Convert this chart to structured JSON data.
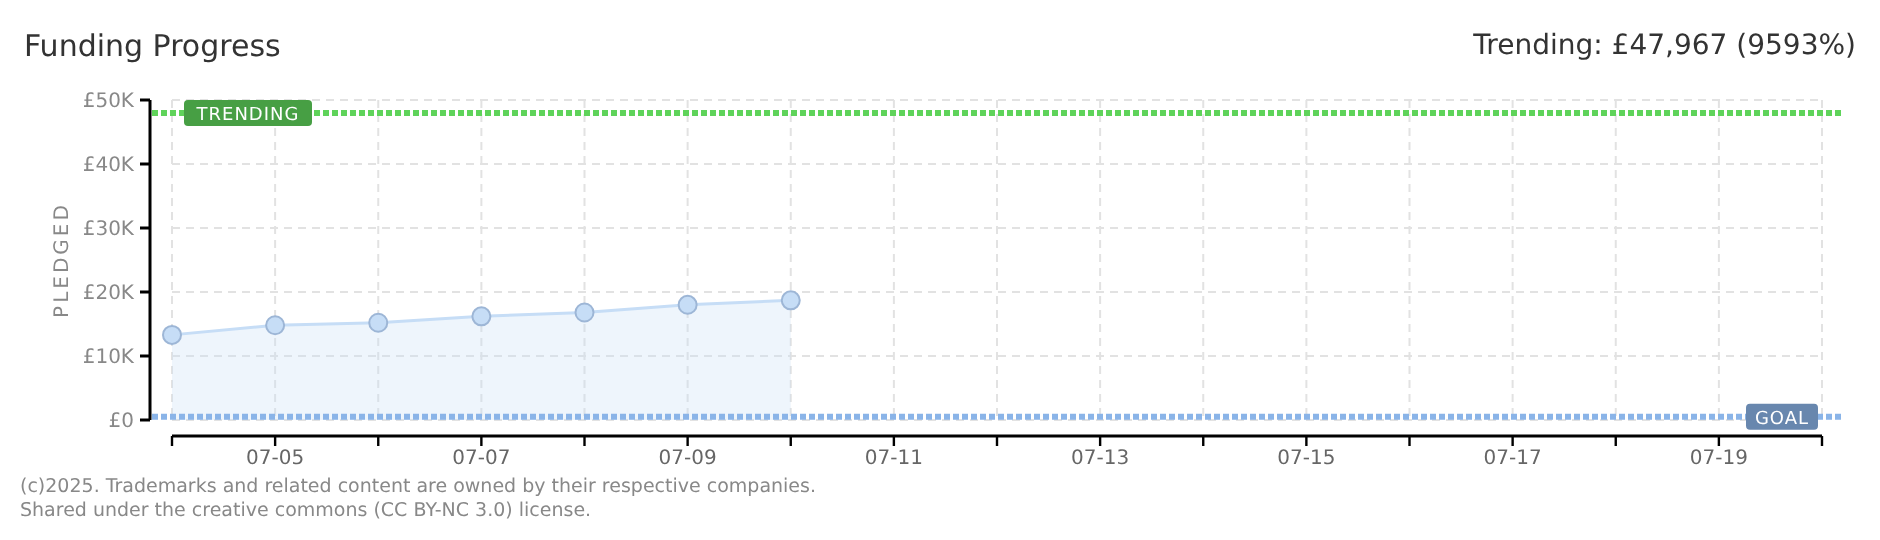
{
  "chart_data": {
    "type": "area",
    "title": "Funding Progress",
    "subtitle": "Trending: £47,967 (9593%)",
    "ylabel": "PLEDGED",
    "x": [
      "--07-04",
      "--07-05",
      "--07-06",
      "--07-07",
      "--07-08",
      "--07-09",
      "--07-10"
    ],
    "series": [
      {
        "color": "#c6ddf6",
        "values": [
          13300,
          14800,
          15200,
          16200,
          16800,
          18000,
          18700
        ]
      }
    ],
    "xlim": [
      "--07-04",
      "--07-20"
    ],
    "xticks": [
      {
        "value": "--07-04",
        "label": null
      },
      {
        "value": "--07-05",
        "label": "07-05"
      },
      {
        "value": "--07-06",
        "label": null
      },
      {
        "value": "--07-07",
        "label": "07-07"
      },
      {
        "value": "--07-08",
        "label": null
      },
      {
        "value": "--07-09",
        "label": "07-09"
      },
      {
        "value": "--07-10",
        "label": null
      },
      {
        "value": "--07-11",
        "label": "07-11"
      },
      {
        "value": "--07-12",
        "label": null
      },
      {
        "value": "--07-13",
        "label": "07-13"
      },
      {
        "value": "--07-14",
        "label": null
      },
      {
        "value": "--07-15",
        "label": "07-15"
      },
      {
        "value": "--07-16",
        "label": null
      },
      {
        "value": "--07-17",
        "label": "07-17"
      },
      {
        "value": "--07-18",
        "label": null
      },
      {
        "value": "--07-19",
        "label": "07-19"
      },
      {
        "value": "--07-20",
        "label": null
      }
    ],
    "ylim": [
      0,
      50000
    ],
    "yticks": [
      {
        "value": 0,
        "label": "£0"
      },
      {
        "value": 10000,
        "label": "£10K"
      },
      {
        "value": 20000,
        "label": "£20K"
      },
      {
        "value": 30000,
        "label": "£30K"
      },
      {
        "value": 40000,
        "label": "£40K"
      },
      {
        "value": 50000,
        "label": "£50K"
      }
    ],
    "grid": true,
    "marker": "circle",
    "ref_lines": [
      {
        "axis": "y",
        "value": 47967,
        "label": "TRENDING",
        "color": "#5fd35a",
        "line_style": "dotted"
      },
      {
        "axis": "y",
        "value": 500,
        "label": "GOAL",
        "color": "#8ab4e8",
        "line_style": "dotted"
      }
    ],
    "annotations": [
      "(c)2025. Trademarks and related content are owned by their respective companies.",
      "Shared under the creative commons (CC BY-NC 3.0) license."
    ]
  }
}
